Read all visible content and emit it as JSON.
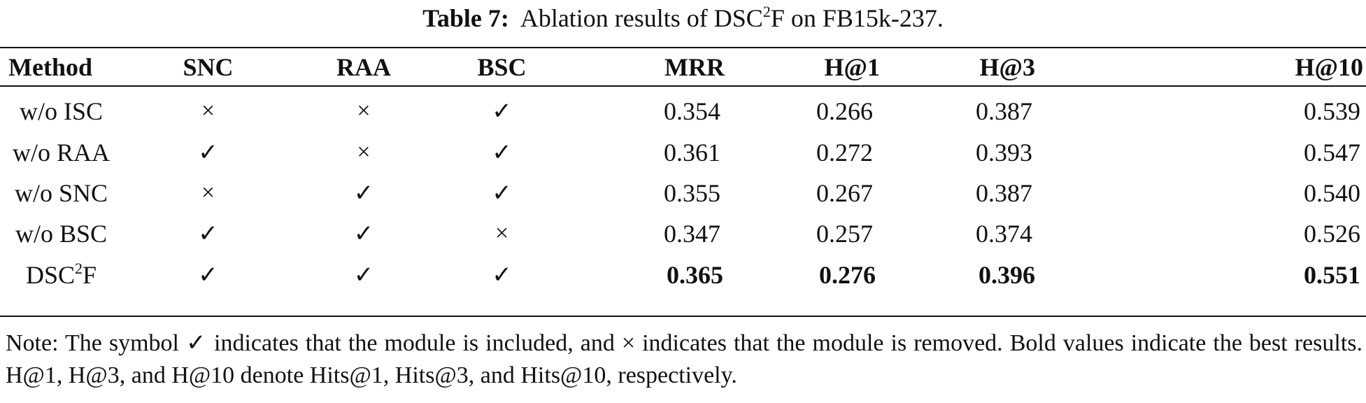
{
  "caption": {
    "label": "Table 7:",
    "text_before": "Ablation results of DSC",
    "sup": "2",
    "text_after": "F on FB15k-237."
  },
  "table": {
    "headers": [
      "Method",
      "SNC",
      "RAA",
      "BSC",
      "MRR",
      "H@1",
      "H@3",
      "H@10"
    ],
    "rows": [
      {
        "method": "w/o ISC",
        "snc": "×",
        "raa": "×",
        "bsc": "✓",
        "mrr": "0.354",
        "h1": "0.266",
        "h3": "0.387",
        "h10": "0.539"
      },
      {
        "method": "w/o RAA",
        "snc": "✓",
        "raa": "×",
        "bsc": "✓",
        "mrr": "0.361",
        "h1": "0.272",
        "h3": "0.393",
        "h10": "0.547"
      },
      {
        "method": "w/o SNC",
        "snc": "×",
        "raa": "✓",
        "bsc": "✓",
        "mrr": "0.355",
        "h1": "0.267",
        "h3": "0.387",
        "h10": "0.540"
      },
      {
        "method": "w/o BSC",
        "snc": "✓",
        "raa": "✓",
        "bsc": "×",
        "mrr": "0.347",
        "h1": "0.257",
        "h3": "0.374",
        "h10": "0.526"
      },
      {
        "method_base": "DSC",
        "method_sup": "2",
        "method_tail": "F",
        "snc": "✓",
        "raa": "✓",
        "bsc": "✓",
        "mrr": "0.365",
        "h1": "0.276",
        "h3": "0.396",
        "h10": "0.551"
      }
    ]
  },
  "note": "Note: The symbol ✓ indicates that the module is included, and × indicates that the module is removed. Bold values indicate the best results. H@1, H@3, and H@10 denote Hits@1, Hits@3, and Hits@10, respectively."
}
